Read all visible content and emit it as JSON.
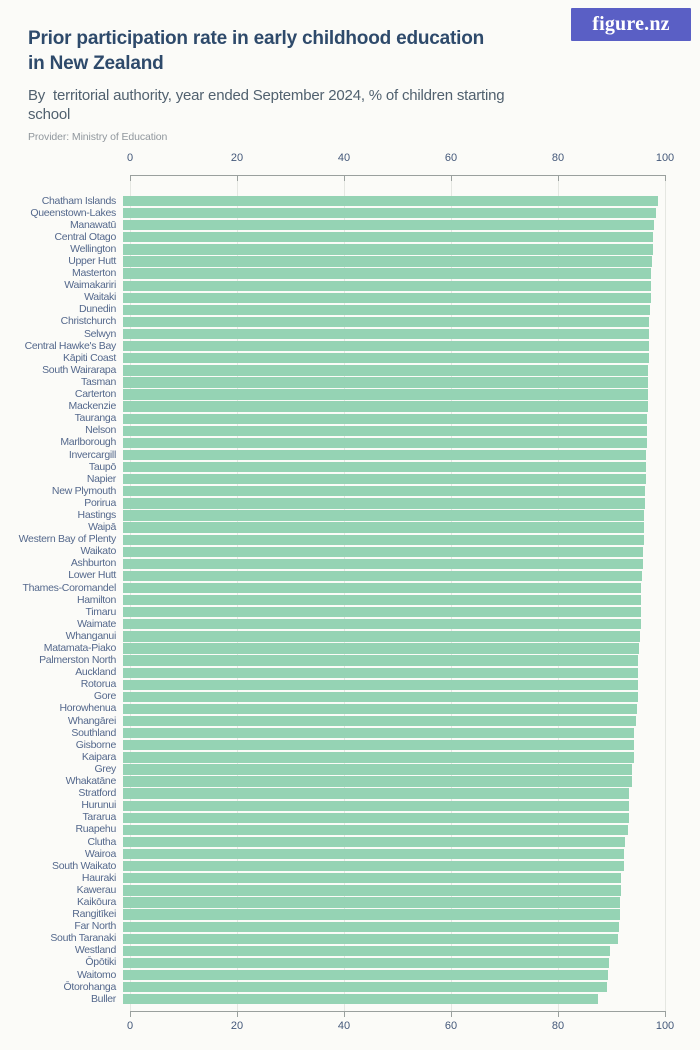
{
  "logo": {
    "text": "figure.nz",
    "bg_color": "#5a5fc5",
    "text_color": "#ffffff"
  },
  "header": {
    "title_line1": "Prior participation rate in early childhood education",
    "title_line2": "in New Zealand",
    "subtitle": "By  territorial authority, year ended September 2024, % of children starting school",
    "provider": "Provider: Ministry of Education"
  },
  "colors": {
    "bar": "#95d3b4",
    "grid": "#e5e7e2",
    "axis": "#9aa09e",
    "tick_text": "#44587a",
    "label_text": "#54688c",
    "title_text": "#2e4a6b"
  },
  "chart_data": {
    "type": "bar",
    "orientation": "horizontal",
    "title": "Prior participation rate in early childhood education in New Zealand",
    "subtitle": "By territorial authority, year ended September 2024, % of children starting school",
    "xlabel": "",
    "ylabel": "",
    "xlim": [
      0,
      100
    ],
    "x_ticks": [
      0,
      20,
      40,
      60,
      80,
      100
    ],
    "grid": true,
    "legend": false,
    "bar_color": "#95d3b4",
    "categories": [
      "Chatham Islands",
      "Queenstown-Lakes",
      "Manawatū",
      "Central Otago",
      "Wellington",
      "Upper Hutt",
      "Masterton",
      "Waimakariri",
      "Waitaki",
      "Dunedin",
      "Christchurch",
      "Selwyn",
      "Central Hawke's Bay",
      "Kāpiti Coast",
      "South Wairarapa",
      "Tasman",
      "Carterton",
      "Mackenzie",
      "Tauranga",
      "Nelson",
      "Marlborough",
      "Invercargill",
      "Taupō",
      "Napier",
      "New Plymouth",
      "Porirua",
      "Hastings",
      "Waipā",
      "Western Bay of Plenty",
      "Waikato",
      "Ashburton",
      "Lower Hutt",
      "Thames-Coromandel",
      "Hamilton",
      "Timaru",
      "Waimate",
      "Whanganui",
      "Matamata-Piako",
      "Palmerston North",
      "Auckland",
      "Rotorua",
      "Gore",
      "Horowhenua",
      "Whangārei",
      "Southland",
      "Gisborne",
      "Kaipara",
      "Grey",
      "Whakatāne",
      "Stratford",
      "Hurunui",
      "Tararua",
      "Ruapehu",
      "Clutha",
      "Wairoa",
      "South Waikato",
      "Hauraki",
      "Kawerau",
      "Kaikōura",
      "Rangitīkei",
      "Far North",
      "South Taranaki",
      "Westland",
      "Ōpōtiki",
      "Waitomo",
      "Ōtorohanga",
      "Buller"
    ],
    "values": [
      100,
      99.6,
      99.2,
      99.1,
      99.1,
      98.8,
      98.7,
      98.6,
      98.6,
      98.5,
      98.4,
      98.4,
      98.3,
      98.3,
      98.2,
      98.2,
      98.1,
      98.1,
      98.0,
      98.0,
      97.9,
      97.8,
      97.8,
      97.7,
      97.6,
      97.5,
      97.4,
      97.3,
      97.3,
      97.2,
      97.2,
      97.0,
      96.9,
      96.9,
      96.8,
      96.8,
      96.6,
      96.4,
      96.3,
      96.3,
      96.3,
      96.2,
      96.1,
      95.8,
      95.6,
      95.6,
      95.5,
      95.1,
      95.1,
      94.6,
      94.5,
      94.5,
      94.4,
      93.8,
      93.6,
      93.6,
      93.1,
      93.0,
      92.9,
      92.9,
      92.7,
      92.5,
      91.1,
      90.8,
      90.7,
      90.5,
      88.8
    ]
  }
}
